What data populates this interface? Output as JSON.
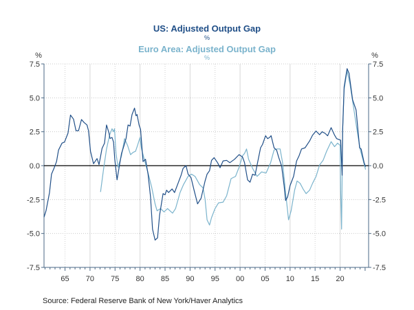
{
  "chart_data": {
    "type": "line",
    "titles": [
      {
        "title": "US: Adjusted Output Gap",
        "unit": "%",
        "color": "#1f4e87"
      },
      {
        "title": "Euro Area: Adjusted Output Gap",
        "unit": "%",
        "color": "#7ab3cc"
      }
    ],
    "left_unit": "%",
    "right_unit": "%",
    "xlim": [
      1960.8,
      2025.7
    ],
    "ylim": [
      -7.5,
      7.5
    ],
    "yticks": [
      7.5,
      5.0,
      2.5,
      0.0,
      -2.5,
      -5.0,
      -7.5
    ],
    "ytick_labels": [
      "7.5",
      "5.0",
      "2.5",
      "0.0",
      "-2.5",
      "-5.0",
      "-7.5"
    ],
    "xticks": [
      1965,
      1970,
      1975,
      1980,
      1985,
      1990,
      1995,
      2000,
      2005,
      2010,
      2015,
      2020
    ],
    "xtick_labels": [
      "65",
      "70",
      "75",
      "80",
      "85",
      "90",
      "95",
      "00",
      "05",
      "10",
      "15",
      "20"
    ],
    "grid": true,
    "source": "Source:  Federal Reserve Bank of New York/Haver Analytics",
    "series": [
      {
        "name": "US: Adjusted Output Gap",
        "color": "#1f4e87",
        "points": [
          [
            1960.8,
            -3.8
          ],
          [
            1961.2,
            -3.33
          ],
          [
            1961.9,
            -1.98
          ],
          [
            1962.3,
            -0.63
          ],
          [
            1962.8,
            -0.2
          ],
          [
            1963.3,
            0.3
          ],
          [
            1963.7,
            1.15
          ],
          [
            1964.4,
            1.66
          ],
          [
            1964.9,
            1.74
          ],
          [
            1965.6,
            2.4
          ],
          [
            1966.1,
            3.73
          ],
          [
            1966.7,
            3.43
          ],
          [
            1967.2,
            2.58
          ],
          [
            1967.7,
            2.58
          ],
          [
            1968.3,
            3.4
          ],
          [
            1968.8,
            3.18
          ],
          [
            1969.4,
            3.0
          ],
          [
            1969.7,
            2.58
          ],
          [
            1970.1,
            1.06
          ],
          [
            1970.7,
            0.14
          ],
          [
            1971.4,
            0.52
          ],
          [
            1971.8,
            0.08
          ],
          [
            1972.4,
            1.27
          ],
          [
            1972.9,
            1.66
          ],
          [
            1973.3,
            3.0
          ],
          [
            1973.8,
            2.4
          ],
          [
            1974.0,
            2.0
          ],
          [
            1974.4,
            2.08
          ],
          [
            1974.7,
            1.74
          ],
          [
            1974.95,
            0.47
          ],
          [
            1975.4,
            -1.05
          ],
          [
            1975.9,
            0.05
          ],
          [
            1976.3,
            0.9
          ],
          [
            1976.8,
            1.49
          ],
          [
            1977.2,
            2.0
          ],
          [
            1977.6,
            3.0
          ],
          [
            1978.0,
            2.92
          ],
          [
            1978.4,
            3.77
          ],
          [
            1978.9,
            4.24
          ],
          [
            1979.2,
            3.68
          ],
          [
            1979.4,
            3.77
          ],
          [
            1979.8,
            3.0
          ],
          [
            1980.1,
            2.67
          ],
          [
            1980.6,
            0.3
          ],
          [
            1981.1,
            0.47
          ],
          [
            1981.6,
            -0.63
          ],
          [
            1982.1,
            -2.31
          ],
          [
            1982.5,
            -4.68
          ],
          [
            1983.0,
            -5.49
          ],
          [
            1983.5,
            -5.32
          ],
          [
            1983.9,
            -3.67
          ],
          [
            1984.6,
            -2.06
          ],
          [
            1985.0,
            -2.15
          ],
          [
            1985.3,
            -1.81
          ],
          [
            1985.7,
            -1.98
          ],
          [
            1986.4,
            -1.72
          ],
          [
            1986.9,
            -1.98
          ],
          [
            1987.6,
            -1.3
          ],
          [
            1988.2,
            -0.71
          ],
          [
            1988.6,
            -0.2
          ],
          [
            1989.2,
            0.0
          ],
          [
            1989.6,
            -0.63
          ],
          [
            1990.2,
            -0.88
          ],
          [
            1990.8,
            -1.81
          ],
          [
            1991.5,
            -2.82
          ],
          [
            1992.2,
            -2.4
          ],
          [
            1993.0,
            -1.13
          ],
          [
            1993.4,
            -0.63
          ],
          [
            1993.9,
            -0.37
          ],
          [
            1994.3,
            0.39
          ],
          [
            1994.8,
            0.59
          ],
          [
            1995.5,
            0.22
          ],
          [
            1996.0,
            -0.15
          ],
          [
            1996.6,
            0.35
          ],
          [
            1997.3,
            0.39
          ],
          [
            1997.95,
            0.22
          ],
          [
            1998.9,
            0.47
          ],
          [
            1999.8,
            0.81
          ],
          [
            2000.5,
            0.64
          ],
          [
            2000.9,
            0.22
          ],
          [
            2001.5,
            -1.05
          ],
          [
            2002.0,
            -1.22
          ],
          [
            2002.5,
            -0.63
          ],
          [
            2003.0,
            -0.71
          ],
          [
            2003.5,
            0.22
          ],
          [
            2004.1,
            1.32
          ],
          [
            2004.5,
            1.57
          ],
          [
            2005.1,
            2.21
          ],
          [
            2005.5,
            1.99
          ],
          [
            2005.9,
            2.08
          ],
          [
            2006.2,
            2.21
          ],
          [
            2006.8,
            1.32
          ],
          [
            2007.3,
            1.15
          ],
          [
            2007.7,
            0.64
          ],
          [
            2008.3,
            -0.03
          ],
          [
            2008.8,
            -1.47
          ],
          [
            2009.1,
            -2.57
          ],
          [
            2009.5,
            -2.31
          ],
          [
            2010.0,
            -1.47
          ],
          [
            2010.7,
            -0.79
          ],
          [
            2011.3,
            0.35
          ],
          [
            2011.8,
            0.73
          ],
          [
            2012.3,
            1.23
          ],
          [
            2013.0,
            1.32
          ],
          [
            2013.9,
            1.82
          ],
          [
            2014.5,
            2.25
          ],
          [
            2015.2,
            2.55
          ],
          [
            2015.9,
            2.28
          ],
          [
            2016.4,
            2.5
          ],
          [
            2017.0,
            2.38
          ],
          [
            2017.5,
            2.2
          ],
          [
            2018.2,
            2.8
          ],
          [
            2018.9,
            2.25
          ],
          [
            2019.3,
            1.99
          ],
          [
            2020.1,
            1.88
          ],
          [
            2020.4,
            -0.71
          ],
          [
            2020.5,
            2.58
          ],
          [
            2020.8,
            5.8
          ],
          [
            2021.4,
            7.15
          ],
          [
            2021.8,
            6.8
          ],
          [
            2022.5,
            4.86
          ],
          [
            2023.2,
            4.1
          ],
          [
            2023.9,
            1.32
          ],
          [
            2024.2,
            1.23
          ],
          [
            2024.8,
            0.22
          ],
          [
            2025.1,
            -0.08
          ]
        ]
      },
      {
        "name": "Euro Area: Adjusted Output Gap",
        "color": "#7ab3cc",
        "points": [
          [
            1972.1,
            -1.94
          ],
          [
            1972.7,
            -0.29
          ],
          [
            1973.3,
            1.23
          ],
          [
            1973.9,
            2.25
          ],
          [
            1974.4,
            2.72
          ],
          [
            1974.7,
            2.5
          ],
          [
            1974.9,
            2.72
          ],
          [
            1975.2,
            0.9
          ],
          [
            1975.6,
            -0.12
          ],
          [
            1976.3,
            0.73
          ],
          [
            1976.9,
            1.99
          ],
          [
            1977.5,
            1.49
          ],
          [
            1978.1,
            0.81
          ],
          [
            1978.6,
            0.98
          ],
          [
            1979.1,
            1.06
          ],
          [
            1979.5,
            1.49
          ],
          [
            1980.0,
            2.08
          ],
          [
            1980.3,
            1.23
          ],
          [
            1980.9,
            0.39
          ],
          [
            1981.6,
            -0.54
          ],
          [
            1982.3,
            -1.55
          ],
          [
            1983.0,
            -2.82
          ],
          [
            1983.4,
            -3.33
          ],
          [
            1984.1,
            -3.16
          ],
          [
            1984.8,
            -3.41
          ],
          [
            1985.5,
            -3.16
          ],
          [
            1986.5,
            -3.5
          ],
          [
            1987.1,
            -3.16
          ],
          [
            1988.0,
            -1.98
          ],
          [
            1988.7,
            -1.39
          ],
          [
            1989.6,
            -0.79
          ],
          [
            1990.3,
            -0.63
          ],
          [
            1991.0,
            -0.79
          ],
          [
            1991.9,
            -1.39
          ],
          [
            1992.6,
            -1.64
          ],
          [
            1993.0,
            -2.48
          ],
          [
            1993.4,
            -4.0
          ],
          [
            1993.9,
            -4.38
          ],
          [
            1994.3,
            -3.83
          ],
          [
            1995.0,
            -3.16
          ],
          [
            1995.7,
            -2.74
          ],
          [
            1996.6,
            -2.69
          ],
          [
            1997.3,
            -2.23
          ],
          [
            1998.2,
            -0.96
          ],
          [
            1999.1,
            -0.79
          ],
          [
            1999.8,
            -0.12
          ],
          [
            2000.5,
            0.73
          ],
          [
            2000.9,
            0.9
          ],
          [
            2001.3,
            1.23
          ],
          [
            2001.7,
            0.47
          ],
          [
            2002.5,
            -0.2
          ],
          [
            2003.4,
            -0.79
          ],
          [
            2004.3,
            -0.46
          ],
          [
            2005.2,
            -0.54
          ],
          [
            2006.1,
            0.22
          ],
          [
            2006.8,
            1.15
          ],
          [
            2007.4,
            1.23
          ],
          [
            2008.0,
            1.23
          ],
          [
            2008.5,
            0.22
          ],
          [
            2009.1,
            -1.98
          ],
          [
            2009.7,
            -4.0
          ],
          [
            2010.2,
            -3.33
          ],
          [
            2010.9,
            -1.81
          ],
          [
            2011.4,
            -1.13
          ],
          [
            2012.0,
            -1.3
          ],
          [
            2012.6,
            -1.72
          ],
          [
            2013.2,
            -2.06
          ],
          [
            2013.9,
            -1.81
          ],
          [
            2014.5,
            -1.3
          ],
          [
            2015.2,
            -0.79
          ],
          [
            2015.9,
            0.05
          ],
          [
            2016.6,
            0.39
          ],
          [
            2017.3,
            1.06
          ],
          [
            2018.2,
            1.77
          ],
          [
            2018.9,
            1.4
          ],
          [
            2019.5,
            1.66
          ],
          [
            2020.0,
            1.49
          ],
          [
            2020.1,
            -1.8
          ],
          [
            2020.3,
            -4.68
          ],
          [
            2020.5,
            2.58
          ],
          [
            2020.8,
            5.62
          ],
          [
            2021.4,
            6.98
          ],
          [
            2022.0,
            5.96
          ],
          [
            2022.7,
            4.27
          ],
          [
            2023.4,
            2.58
          ],
          [
            2024.0,
            1.23
          ],
          [
            2024.6,
            0.39
          ],
          [
            2025.1,
            -0.29
          ]
        ]
      }
    ]
  }
}
